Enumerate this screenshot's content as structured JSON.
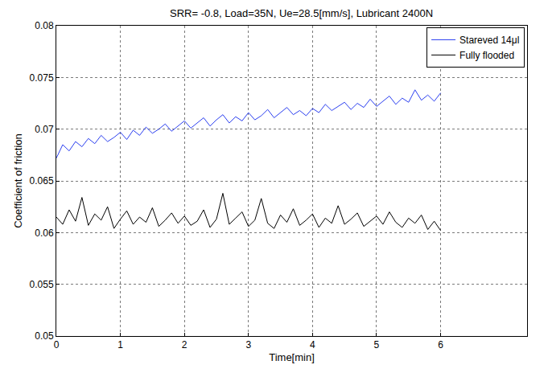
{
  "chart_data": {
    "type": "line",
    "title": "SRR= -0.8, Load=35N, Ue=28.5[mm/s], Lubricant 2400N",
    "x_label": "Time[min]",
    "y_label": "Coefficient of friction",
    "x": [
      0,
      0.1,
      0.2,
      0.3,
      0.4,
      0.5,
      0.6,
      0.7,
      0.8,
      0.9,
      1,
      1.1,
      1.2,
      1.3,
      1.4,
      1.5,
      1.6,
      1.7,
      1.8,
      1.9,
      2,
      2.1,
      2.2,
      2.3,
      2.4,
      2.5,
      2.6,
      2.7,
      2.8,
      2.9,
      3,
      3.1,
      3.2,
      3.3,
      3.4,
      3.5,
      3.6,
      3.7,
      3.8,
      3.9,
      4,
      4.1,
      4.2,
      4.3,
      4.4,
      4.5,
      4.6,
      4.7,
      4.8,
      4.9,
      5,
      5.1,
      5.2,
      5.3,
      5.4,
      5.5,
      5.6,
      5.7,
      5.8,
      5.9,
      6
    ],
    "series": [
      {
        "name": "Stareved 14μl",
        "color": "#2b3ff0",
        "line_style": "solid",
        "values": [
          0.0672,
          0.0685,
          0.0679,
          0.0688,
          0.0683,
          0.0691,
          0.0686,
          0.0694,
          0.0688,
          0.0692,
          0.0697,
          0.069,
          0.0699,
          0.0694,
          0.0702,
          0.0696,
          0.07,
          0.0705,
          0.0698,
          0.0703,
          0.0708,
          0.0701,
          0.0706,
          0.0711,
          0.0703,
          0.0709,
          0.0714,
          0.0706,
          0.0712,
          0.0708,
          0.0716,
          0.0709,
          0.0713,
          0.0719,
          0.0711,
          0.0716,
          0.0721,
          0.0714,
          0.0718,
          0.0713,
          0.072,
          0.0716,
          0.0724,
          0.0718,
          0.0722,
          0.0726,
          0.0719,
          0.0725,
          0.0721,
          0.0729,
          0.0722,
          0.0727,
          0.0732,
          0.0724,
          0.073,
          0.0726,
          0.0738,
          0.0728,
          0.0733,
          0.0727,
          0.0735
        ]
      },
      {
        "name": "Fully flooded",
        "color": "#000000",
        "line_style": "solid",
        "values": [
          0.0615,
          0.0608,
          0.0622,
          0.0611,
          0.0634,
          0.0607,
          0.0618,
          0.0612,
          0.0625,
          0.0604,
          0.0613,
          0.0621,
          0.0608,
          0.0615,
          0.061,
          0.0624,
          0.0606,
          0.0612,
          0.0619,
          0.0609,
          0.0616,
          0.0607,
          0.0611,
          0.0622,
          0.0605,
          0.0613,
          0.0638,
          0.0608,
          0.0614,
          0.062,
          0.0606,
          0.0612,
          0.0633,
          0.0609,
          0.0604,
          0.0617,
          0.061,
          0.0623,
          0.0607,
          0.0612,
          0.0618,
          0.0605,
          0.0614,
          0.0609,
          0.0626,
          0.0608,
          0.0613,
          0.0619,
          0.0606,
          0.0611,
          0.0616,
          0.0608,
          0.062,
          0.061,
          0.0605,
          0.0614,
          0.0609,
          0.0617,
          0.0603,
          0.0611,
          0.0602
        ]
      }
    ],
    "xlim": [
      0,
      7.35
    ],
    "xticks": [
      0,
      1,
      2,
      3,
      4,
      5,
      6
    ],
    "ylim": [
      0.05,
      0.08
    ],
    "yticks": [
      0.05,
      0.055,
      0.06,
      0.065,
      0.07,
      0.075,
      0.08
    ],
    "grid": true,
    "legend": "upper right"
  }
}
